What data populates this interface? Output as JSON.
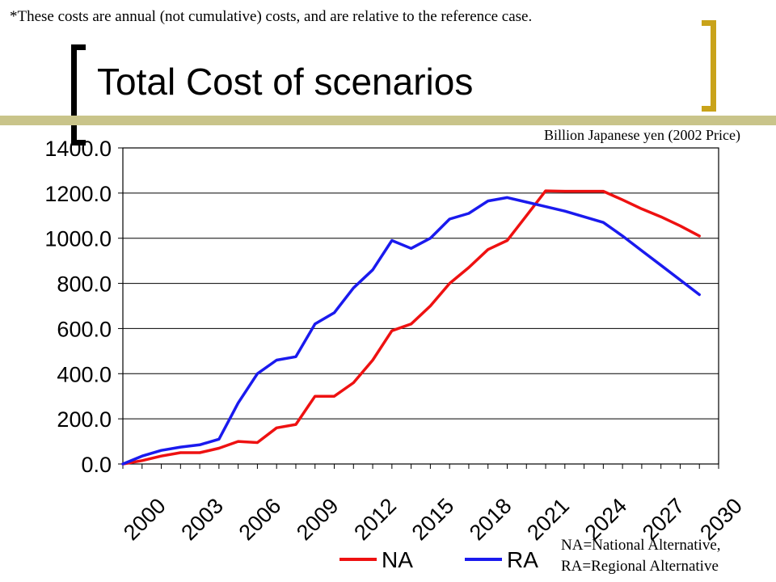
{
  "header": {
    "note": "*These costs are annual (not cumulative) costs, and are relative to the reference case.",
    "title": "Total Cost of scenarios",
    "units": "Billion Japanese yen (2002 Price)"
  },
  "footer": {
    "note_line1": "NA=National Alternative,",
    "note_line2": "RA=Regional Alternative"
  },
  "colors": {
    "NA": "#ee1111",
    "RA": "#1a1aee",
    "accent_left": "#000000",
    "accent_right": "#c9a31a",
    "deco_bar": "#c9c48a"
  },
  "chart_data": {
    "type": "line",
    "title": "Total Cost of scenarios",
    "xlabel": "",
    "ylabel": "",
    "x": [
      2000,
      2001,
      2002,
      2003,
      2004,
      2005,
      2006,
      2007,
      2008,
      2009,
      2010,
      2011,
      2012,
      2013,
      2014,
      2015,
      2016,
      2017,
      2018,
      2019,
      2020,
      2021,
      2022,
      2023,
      2024,
      2025,
      2026,
      2027,
      2028,
      2029,
      2030,
      2031
    ],
    "x_tick_labels": [
      "2000",
      "2003",
      "2006",
      "2009",
      "2012",
      "2015",
      "2018",
      "2021",
      "2024",
      "2027",
      "2030"
    ],
    "x_tick_values": [
      2000,
      2003,
      2006,
      2009,
      2012,
      2015,
      2018,
      2021,
      2024,
      2027,
      2030
    ],
    "y_tick_labels": [
      "0.0",
      "200.0",
      "400.0",
      "600.0",
      "800.0",
      "1000.0",
      "1200.0",
      "1400.0"
    ],
    "y_tick_values": [
      0,
      200,
      400,
      600,
      800,
      1000,
      1200,
      1400
    ],
    "ylim": [
      0,
      1400
    ],
    "xlim": [
      2000,
      2031
    ],
    "grid": "horizontal",
    "legend": "bottom",
    "series": [
      {
        "name": "NA",
        "values": [
          0,
          15,
          35,
          50,
          50,
          70,
          100,
          95,
          160,
          175,
          300,
          300,
          360,
          460,
          590,
          620,
          700,
          800,
          870,
          950,
          990,
          1100,
          1210,
          1208,
          1208,
          1208,
          1170,
          1130,
          1095,
          1055,
          1010,
          null
        ]
      },
      {
        "name": "RA",
        "values": [
          0,
          35,
          60,
          75,
          85,
          110,
          270,
          400,
          460,
          475,
          620,
          670,
          780,
          860,
          990,
          955,
          1000,
          1085,
          1110,
          1165,
          1180,
          1160,
          1140,
          1120,
          1095,
          1070,
          1010,
          945,
          880,
          815,
          750,
          null
        ]
      }
    ]
  }
}
